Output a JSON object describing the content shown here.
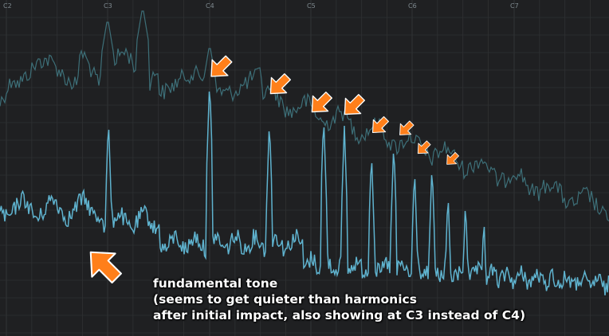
{
  "notes": [
    "C2",
    "C3",
    "C4",
    "C5",
    "C6",
    "C7"
  ],
  "caption": {
    "line1": "fundamental tone",
    "line2": "(seems to get quieter than harmonics",
    "line3": "after initial impact, also showing at C3 instead of C4)"
  },
  "colors": {
    "background": "#1f2022",
    "grid": "#2f3133",
    "peak_trace": "#3d6f78",
    "current_trace": "#5fb3cf",
    "arrow_fill": "#ff7f1a",
    "arrow_stroke": "#ffffff",
    "caption_text": "#ffffff"
  },
  "icons": {
    "harmonic_marker": "arrow-down-left-icon",
    "fundamental_marker": "arrow-up-left-icon"
  }
}
